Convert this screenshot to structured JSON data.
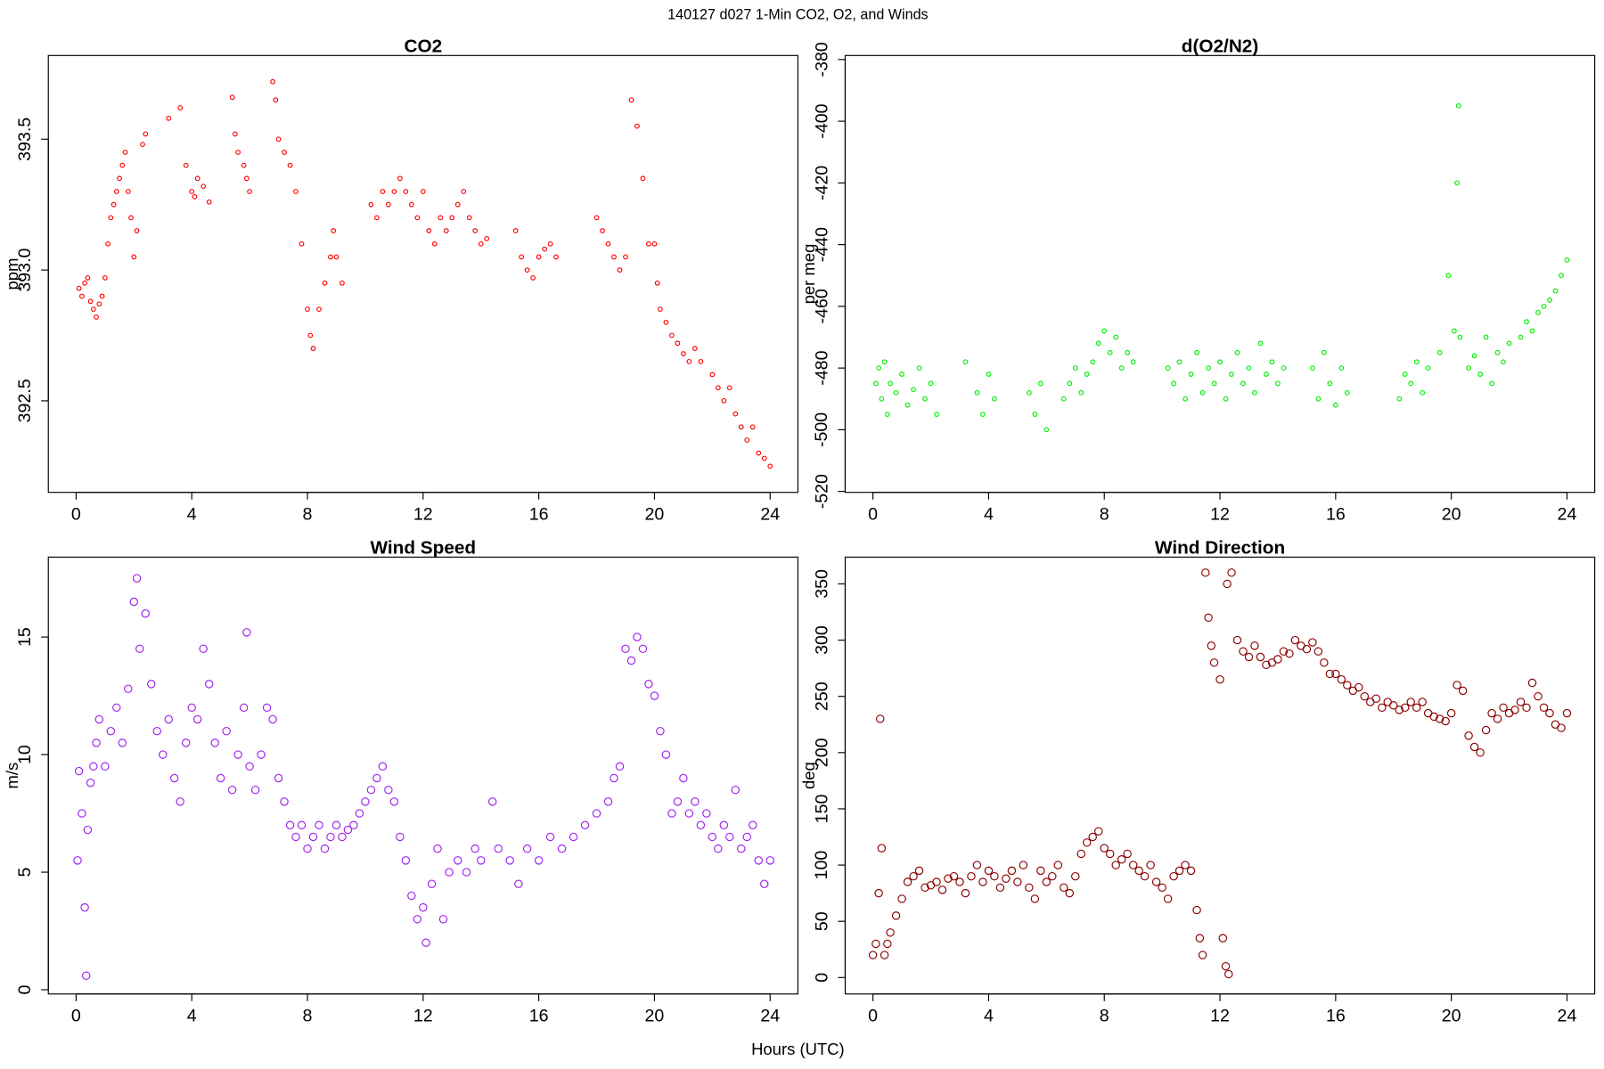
{
  "title": "140127   d027   1-Min CO2, O2, and Winds",
  "xlabel": "Hours (UTC)",
  "chart_data": [
    {
      "type": "scatter",
      "title": "CO2",
      "ylabel": "ppm",
      "color": "#ff0000",
      "xlim": [
        -0.96,
        24.96
      ],
      "xticks": [
        0,
        4,
        8,
        12,
        16,
        20,
        24
      ],
      "ylim": [
        392.15,
        393.82
      ],
      "yticks": [
        392.5,
        {
          "value": 393,
          "label": "393.0"
        },
        393.5
      ],
      "x": [
        0.1,
        0.2,
        0.3,
        0.4,
        0.5,
        0.6,
        0.7,
        0.8,
        0.9,
        1.0,
        1.1,
        1.2,
        1.3,
        1.4,
        1.5,
        1.6,
        1.7,
        1.8,
        1.9,
        2.0,
        2.1,
        2.3,
        2.4,
        3.2,
        3.6,
        3.8,
        4.0,
        4.1,
        4.2,
        4.4,
        4.6,
        5.4,
        5.5,
        5.6,
        5.8,
        5.9,
        6.0,
        6.8,
        6.9,
        7.0,
        7.2,
        7.4,
        7.6,
        7.8,
        8.0,
        8.1,
        8.2,
        8.4,
        8.6,
        8.8,
        8.9,
        9.0,
        9.2,
        10.2,
        10.4,
        10.6,
        10.8,
        11.0,
        11.2,
        11.4,
        11.6,
        11.8,
        12.0,
        12.2,
        12.4,
        12.6,
        12.8,
        13.0,
        13.2,
        13.4,
        13.6,
        13.8,
        14.0,
        14.2,
        15.2,
        15.4,
        15.6,
        15.8,
        16.0,
        16.2,
        16.4,
        16.6,
        18.0,
        18.2,
        18.4,
        18.6,
        18.8,
        19.0,
        19.2,
        19.4,
        19.6,
        19.8,
        20.0,
        20.1,
        20.2,
        20.4,
        20.6,
        20.8,
        21.0,
        21.2,
        21.4,
        21.6,
        22.0,
        22.2,
        22.4,
        22.6,
        22.8,
        23.0,
        23.2,
        23.4,
        23.6,
        23.8,
        24.0
      ],
      "values": [
        392.93,
        392.9,
        392.95,
        392.97,
        392.88,
        392.85,
        392.82,
        392.87,
        392.9,
        392.97,
        393.1,
        393.2,
        393.25,
        393.3,
        393.35,
        393.4,
        393.45,
        393.3,
        393.2,
        393.05,
        393.15,
        393.48,
        393.52,
        393.58,
        393.62,
        393.4,
        393.3,
        393.28,
        393.35,
        393.32,
        393.26,
        393.66,
        393.52,
        393.45,
        393.4,
        393.35,
        393.3,
        393.72,
        393.65,
        393.5,
        393.45,
        393.4,
        393.3,
        393.1,
        392.85,
        392.75,
        392.7,
        392.85,
        392.95,
        393.05,
        393.15,
        393.05,
        392.95,
        393.25,
        393.2,
        393.3,
        393.25,
        393.3,
        393.35,
        393.3,
        393.25,
        393.2,
        393.3,
        393.15,
        393.1,
        393.2,
        393.15,
        393.2,
        393.25,
        393.3,
        393.2,
        393.15,
        393.1,
        393.12,
        393.15,
        393.05,
        393.0,
        392.97,
        393.05,
        393.08,
        393.1,
        393.05,
        393.2,
        393.15,
        393.1,
        393.05,
        393.0,
        393.05,
        393.65,
        393.55,
        393.35,
        393.1,
        393.1,
        392.95,
        392.85,
        392.8,
        392.75,
        392.72,
        392.68,
        392.65,
        392.7,
        392.65,
        392.6,
        392.55,
        392.5,
        392.55,
        392.45,
        392.4,
        392.35,
        392.4,
        392.3,
        392.28,
        392.25
      ]
    },
    {
      "type": "scatter",
      "title": "d(O2/N2)",
      "ylabel": "per meg",
      "color": "#00ee00",
      "xlim": [
        -0.96,
        24.96
      ],
      "xticks": [
        0,
        4,
        8,
        12,
        16,
        20,
        24
      ],
      "ylim": [
        -520.3,
        -378.7
      ],
      "yticks": [
        -520,
        -500,
        -480,
        -460,
        -440,
        -420,
        -400,
        -380
      ],
      "x": [
        0.1,
        0.2,
        0.3,
        0.4,
        0.5,
        0.6,
        0.8,
        1.0,
        1.2,
        1.4,
        1.6,
        1.8,
        2.0,
        2.2,
        3.2,
        3.6,
        3.8,
        4.0,
        4.2,
        5.4,
        5.6,
        5.8,
        6.0,
        6.6,
        6.8,
        7.0,
        7.2,
        7.4,
        7.6,
        7.8,
        8.0,
        8.2,
        8.4,
        8.6,
        8.8,
        9.0,
        10.2,
        10.4,
        10.6,
        10.8,
        11.0,
        11.2,
        11.4,
        11.6,
        11.8,
        12.0,
        12.2,
        12.4,
        12.6,
        12.8,
        13.0,
        13.2,
        13.4,
        13.6,
        13.8,
        14.0,
        14.2,
        15.2,
        15.4,
        15.6,
        15.8,
        16.0,
        16.2,
        16.4,
        18.2,
        18.4,
        18.6,
        18.8,
        19.0,
        19.2,
        19.6,
        19.9,
        20.1,
        20.2,
        20.25,
        20.3,
        20.6,
        20.8,
        21.0,
        21.2,
        21.4,
        21.6,
        21.8,
        22.0,
        22.4,
        22.6,
        22.8,
        23.0,
        23.2,
        23.4,
        23.6,
        23.8,
        24.0
      ],
      "values": [
        -485,
        -480,
        -490,
        -478,
        -495,
        -485,
        -488,
        -482,
        -492,
        -487,
        -480,
        -490,
        -485,
        -495,
        -478,
        -488,
        -495,
        -482,
        -490,
        -488,
        -495,
        -485,
        -500,
        -490,
        -485,
        -480,
        -488,
        -482,
        -478,
        -472,
        -468,
        -475,
        -470,
        -480,
        -475,
        -478,
        -480,
        -485,
        -478,
        -490,
        -482,
        -475,
        -488,
        -480,
        -485,
        -478,
        -490,
        -482,
        -475,
        -485,
        -480,
        -488,
        -472,
        -482,
        -478,
        -485,
        -480,
        -480,
        -490,
        -475,
        -485,
        -492,
        -480,
        -488,
        -490,
        -482,
        -485,
        -478,
        -488,
        -480,
        -475,
        -450,
        -468,
        -420,
        -395,
        -470,
        -480,
        -476,
        -482,
        -470,
        -485,
        -475,
        -478,
        -472,
        -470,
        -465,
        -468,
        -462,
        -460,
        -458,
        -455,
        -450,
        -445
      ]
    },
    {
      "type": "scatter",
      "title": "Wind Speed",
      "ylabel": "m/s",
      "color": "#a020f0",
      "xlim": [
        -0.96,
        24.96
      ],
      "xticks": [
        0,
        4,
        8,
        12,
        16,
        20,
        24
      ],
      "ylim": [
        -0.18,
        18.4
      ],
      "yticks": [
        0,
        5,
        10,
        15
      ],
      "x": [
        0.05,
        0.1,
        0.2,
        0.3,
        0.35,
        0.4,
        0.5,
        0.6,
        0.7,
        0.8,
        1.0,
        1.2,
        1.4,
        1.6,
        1.8,
        2.0,
        2.1,
        2.2,
        2.4,
        2.6,
        2.8,
        3.0,
        3.2,
        3.4,
        3.6,
        3.8,
        4.0,
        4.2,
        4.4,
        4.6,
        4.8,
        5.0,
        5.2,
        5.4,
        5.6,
        5.8,
        5.9,
        6.0,
        6.2,
        6.4,
        6.6,
        6.8,
        7.0,
        7.2,
        7.4,
        7.6,
        7.8,
        8.0,
        8.2,
        8.4,
        8.6,
        8.8,
        9.0,
        9.2,
        9.4,
        9.6,
        9.8,
        10.0,
        10.2,
        10.4,
        10.6,
        10.8,
        11.0,
        11.2,
        11.4,
        11.6,
        11.8,
        12.0,
        12.1,
        12.3,
        12.5,
        12.7,
        12.9,
        13.2,
        13.5,
        13.8,
        14.0,
        14.4,
        14.6,
        15.0,
        15.3,
        15.6,
        16.0,
        16.4,
        16.8,
        17.2,
        17.6,
        18.0,
        18.4,
        18.6,
        18.8,
        19.0,
        19.2,
        19.4,
        19.6,
        19.8,
        20.0,
        20.2,
        20.4,
        20.6,
        20.8,
        21.0,
        21.2,
        21.4,
        21.6,
        21.8,
        22.0,
        22.2,
        22.4,
        22.6,
        22.8,
        23.0,
        23.2,
        23.4,
        23.6,
        23.8,
        24.0
      ],
      "values": [
        5.5,
        9.3,
        7.5,
        3.5,
        0.6,
        6.8,
        8.8,
        9.5,
        10.5,
        11.5,
        9.5,
        11.0,
        12.0,
        10.5,
        12.8,
        16.5,
        17.5,
        14.5,
        16.0,
        13.0,
        11.0,
        10.0,
        11.5,
        9.0,
        8.0,
        10.5,
        12.0,
        11.5,
        14.5,
        13.0,
        10.5,
        9.0,
        11.0,
        8.5,
        10.0,
        12.0,
        15.2,
        9.5,
        8.5,
        10.0,
        12.0,
        11.5,
        9.0,
        8.0,
        7.0,
        6.5,
        7.0,
        6.0,
        6.5,
        7.0,
        6.0,
        6.5,
        7.0,
        6.5,
        6.8,
        7.0,
        7.5,
        8.0,
        8.5,
        9.0,
        9.5,
        8.5,
        8.0,
        6.5,
        5.5,
        4.0,
        3.0,
        3.5,
        2.0,
        4.5,
        6.0,
        3.0,
        5.0,
        5.5,
        5.0,
        6.0,
        5.5,
        8.0,
        6.0,
        5.5,
        4.5,
        6.0,
        5.5,
        6.5,
        6.0,
        6.5,
        7.0,
        7.5,
        8.0,
        9.0,
        9.5,
        14.5,
        14.0,
        15.0,
        14.5,
        13.0,
        12.5,
        11.0,
        10.0,
        7.5,
        8.0,
        9.0,
        7.5,
        8.0,
        7.0,
        7.5,
        6.5,
        6.0,
        7.0,
        6.5,
        8.5,
        6.0,
        6.5,
        7.0,
        5.5,
        4.5,
        5.5
      ]
    },
    {
      "type": "scatter",
      "title": "Wind Direction",
      "ylabel": "deg",
      "color": "#8b0000",
      "xlim": [
        -0.96,
        24.96
      ],
      "xticks": [
        0,
        4,
        8,
        12,
        16,
        20,
        24
      ],
      "ylim": [
        -14.6,
        373.8
      ],
      "yticks": [
        0,
        50,
        100,
        150,
        200,
        250,
        300,
        350
      ],
      "x": [
        0.0,
        0.1,
        0.2,
        0.25,
        0.3,
        0.4,
        0.5,
        0.6,
        0.8,
        1.0,
        1.2,
        1.4,
        1.6,
        1.8,
        2.0,
        2.2,
        2.4,
        2.6,
        2.8,
        3.0,
        3.2,
        3.4,
        3.6,
        3.8,
        4.0,
        4.2,
        4.4,
        4.6,
        4.8,
        5.0,
        5.2,
        5.4,
        5.6,
        5.8,
        6.0,
        6.2,
        6.4,
        6.6,
        6.8,
        7.0,
        7.2,
        7.4,
        7.6,
        7.8,
        8.0,
        8.2,
        8.4,
        8.6,
        8.8,
        9.0,
        9.2,
        9.4,
        9.6,
        9.8,
        10.0,
        10.2,
        10.4,
        10.6,
        10.8,
        11.0,
        11.2,
        11.3,
        11.4,
        11.5,
        11.6,
        11.7,
        11.8,
        12.0,
        12.1,
        12.2,
        12.3,
        12.25,
        12.4,
        12.6,
        12.8,
        13.0,
        13.2,
        13.4,
        13.6,
        13.8,
        14.0,
        14.2,
        14.4,
        14.6,
        14.8,
        15.0,
        15.2,
        15.4,
        15.6,
        15.8,
        16.0,
        16.2,
        16.4,
        16.6,
        16.8,
        17.0,
        17.2,
        17.4,
        17.6,
        17.8,
        18.0,
        18.2,
        18.4,
        18.6,
        18.8,
        19.0,
        19.2,
        19.4,
        19.6,
        19.8,
        20.0,
        20.2,
        20.4,
        20.6,
        20.8,
        21.0,
        21.2,
        21.4,
        21.6,
        21.8,
        22.0,
        22.2,
        22.4,
        22.6,
        22.8,
        23.0,
        23.2,
        23.4,
        23.6,
        23.8,
        24.0
      ],
      "values": [
        20,
        30,
        75,
        230,
        115,
        20,
        30,
        40,
        55,
        70,
        85,
        90,
        95,
        80,
        82,
        85,
        78,
        88,
        90,
        85,
        75,
        90,
        100,
        85,
        95,
        90,
        80,
        88,
        95,
        85,
        100,
        80,
        70,
        95,
        85,
        90,
        100,
        80,
        75,
        90,
        110,
        120,
        125,
        130,
        115,
        110,
        100,
        105,
        110,
        100,
        95,
        90,
        100,
        85,
        80,
        70,
        90,
        95,
        100,
        95,
        60,
        35,
        20,
        360,
        320,
        295,
        280,
        265,
        35,
        10,
        3,
        350,
        360,
        300,
        290,
        285,
        295,
        285,
        278,
        280,
        283,
        290,
        288,
        300,
        295,
        292,
        298,
        290,
        280,
        270,
        270,
        265,
        260,
        255,
        258,
        250,
        245,
        248,
        240,
        245,
        242,
        238,
        240,
        245,
        240,
        245,
        235,
        232,
        230,
        228,
        235,
        260,
        255,
        215,
        205,
        200,
        220,
        235,
        230,
        240,
        235,
        238,
        245,
        240,
        262,
        250,
        240,
        235,
        225,
        222,
        235
      ]
    }
  ]
}
